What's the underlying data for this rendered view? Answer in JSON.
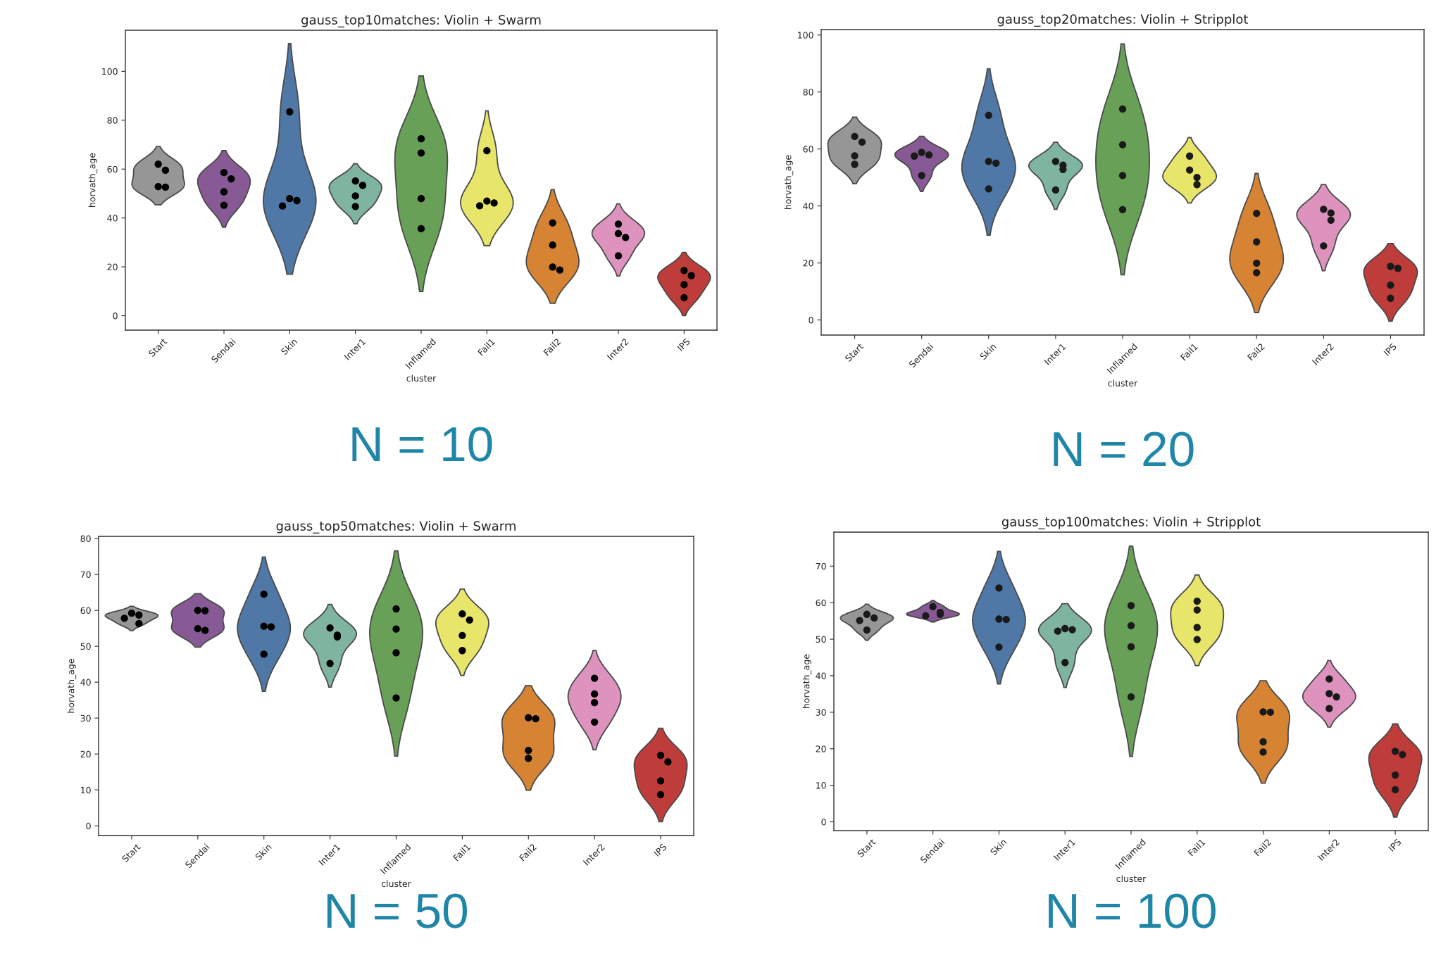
{
  "chart_data": [
    {
      "type": "scatter",
      "title": "gauss_top10matches: Violin + Swarm",
      "xlabel": "cluster",
      "ylabel": "horvath_age",
      "categories": [
        "Start",
        "Sendai",
        "Skin",
        "Inter1",
        "Inflamed",
        "Fail1",
        "Fail2",
        "Inter2",
        "IPS"
      ],
      "colors": [
        "#969696",
        "#885a95",
        "#4f78a6",
        "#7fb5a0",
        "#68a058",
        "#e8e66a",
        "#d68434",
        "#de93bf",
        "#be3d3a"
      ],
      "series": [
        {
          "color": "#000000",
          "x": [
            "Start",
            "Start",
            "Start",
            "Start"
          ],
          "values": [
            62,
            59.5,
            52.8,
            52.6
          ]
        },
        {
          "color": "#000000",
          "x": [
            "Sendai",
            "Sendai",
            "Sendai",
            "Sendai"
          ],
          "values": [
            58.6,
            56,
            50.7,
            45.2
          ]
        },
        {
          "color": "#000000",
          "x": [
            "Skin",
            "Skin",
            "Skin",
            "Skin"
          ],
          "values": [
            83.4,
            47.9,
            47.1,
            44.9
          ]
        },
        {
          "color": "#000000",
          "x": [
            "Inter1",
            "Inter1",
            "Inter1",
            "Inter1"
          ],
          "values": [
            55.1,
            53.3,
            49,
            44.7
          ]
        },
        {
          "color": "#000000",
          "x": [
            "Inflamed",
            "Inflamed",
            "Inflamed",
            "Inflamed"
          ],
          "values": [
            72.4,
            66.6,
            47.9,
            35.6
          ]
        },
        {
          "color": "#000000",
          "x": [
            "Fail1",
            "Fail1",
            "Fail1",
            "Fail1"
          ],
          "values": [
            67.5,
            46.9,
            46.1,
            45
          ]
        },
        {
          "color": "#000000",
          "x": [
            "Fail2",
            "Fail2",
            "Fail2",
            "Fail2"
          ],
          "values": [
            38,
            28.9,
            19.9,
            18.7
          ]
        },
        {
          "color": "#000000",
          "x": [
            "Inter2",
            "Inter2",
            "Inter2",
            "Inter2"
          ],
          "values": [
            37.5,
            33.6,
            32,
            24.5
          ]
        },
        {
          "color": "#000000",
          "x": [
            "IPS",
            "IPS",
            "IPS",
            "IPS"
          ],
          "values": [
            18.5,
            16.4,
            12.7,
            7.4
          ]
        }
      ],
      "ylim": [
        -5.9,
        116.8
      ],
      "yticks": [
        0,
        20,
        40,
        60,
        80,
        100
      ],
      "annotations": [
        "N = 10"
      ]
    },
    {
      "type": "scatter",
      "title": "gauss_top20matches: Violin + Stripplot",
      "xlabel": "cluster",
      "ylabel": "horvath_age",
      "categories": [
        "Start",
        "Sendai",
        "Skin",
        "Inter1",
        "Inflamed",
        "Fail1",
        "Fail2",
        "Inter2",
        "IPS"
      ],
      "colors": [
        "#969696",
        "#885a95",
        "#4f78a6",
        "#7fb5a0",
        "#68a058",
        "#e8e66a",
        "#d68434",
        "#de93bf",
        "#be3d3a"
      ],
      "series": [
        {
          "color": "#1a1a1a",
          "x": [
            "Start",
            "Start",
            "Start",
            "Start"
          ],
          "values": [
            64.4,
            62.4,
            57.6,
            54.6
          ]
        },
        {
          "color": "#1a1a1a",
          "x": [
            "Sendai",
            "Sendai",
            "Sendai",
            "Sendai"
          ],
          "values": [
            58.8,
            57.9,
            57.5,
            50.7
          ]
        },
        {
          "color": "#1a1a1a",
          "x": [
            "Skin",
            "Skin",
            "Skin",
            "Skin"
          ],
          "values": [
            71.8,
            55.6,
            55,
            46
          ]
        },
        {
          "color": "#1a1a1a",
          "x": [
            "Inter1",
            "Inter1",
            "Inter1",
            "Inter1"
          ],
          "values": [
            55.6,
            54.3,
            52.8,
            45.6
          ]
        },
        {
          "color": "#1a1a1a",
          "x": [
            "Inflamed",
            "Inflamed",
            "Inflamed",
            "Inflamed"
          ],
          "values": [
            74,
            61.5,
            50.7,
            38.7
          ]
        },
        {
          "color": "#1a1a1a",
          "x": [
            "Fail1",
            "Fail1",
            "Fail1",
            "Fail1"
          ],
          "values": [
            57.5,
            52.6,
            50,
            47.5
          ]
        },
        {
          "color": "#1a1a1a",
          "x": [
            "Fail2",
            "Fail2",
            "Fail2",
            "Fail2"
          ],
          "values": [
            37.4,
            27.4,
            19.9,
            16.6
          ]
        },
        {
          "color": "#1a1a1a",
          "x": [
            "Inter2",
            "Inter2",
            "Inter2",
            "Inter2"
          ],
          "values": [
            38.8,
            37.5,
            35,
            26
          ]
        },
        {
          "color": "#1a1a1a",
          "x": [
            "IPS",
            "IPS",
            "IPS",
            "IPS"
          ],
          "values": [
            18.8,
            18.1,
            12.2,
            7.6
          ]
        }
      ],
      "ylim": [
        -5.3,
        101.9
      ],
      "yticks": [
        0,
        20,
        40,
        60,
        80,
        100
      ],
      "annotations": [
        "N = 20"
      ]
    },
    {
      "type": "scatter",
      "title": "gauss_top50matches: Violin + Swarm",
      "xlabel": "cluster",
      "ylabel": "horvath_age",
      "categories": [
        "Start",
        "Sendai",
        "Skin",
        "Inter1",
        "Inflamed",
        "Fail1",
        "Fail2",
        "Inter2",
        "IPS"
      ],
      "colors": [
        "#969696",
        "#885a95",
        "#4f78a6",
        "#7fb5a0",
        "#68a058",
        "#e8e66a",
        "#d68434",
        "#de93bf",
        "#be3d3a"
      ],
      "series": [
        {
          "color": "#000000",
          "x": [
            "Start",
            "Start",
            "Start",
            "Start"
          ],
          "values": [
            59.2,
            58.7,
            57.8,
            56.3
          ]
        },
        {
          "color": "#000000",
          "x": [
            "Sendai",
            "Sendai",
            "Sendai",
            "Sendai"
          ],
          "values": [
            60,
            59.9,
            54.9,
            54.4
          ]
        },
        {
          "color": "#000000",
          "x": [
            "Skin",
            "Skin",
            "Skin",
            "Skin"
          ],
          "values": [
            64.5,
            55.6,
            55.4,
            47.8
          ]
        },
        {
          "color": "#000000",
          "x": [
            "Inter1",
            "Inter1",
            "Inter1",
            "Inter1"
          ],
          "values": [
            55.1,
            53.1,
            52.6,
            45.2
          ]
        },
        {
          "color": "#000000",
          "x": [
            "Inflamed",
            "Inflamed",
            "Inflamed",
            "Inflamed"
          ],
          "values": [
            60.4,
            54.8,
            48.2,
            35.6
          ]
        },
        {
          "color": "#000000",
          "x": [
            "Fail1",
            "Fail1",
            "Fail1",
            "Fail1"
          ],
          "values": [
            59,
            57.3,
            53,
            48.8
          ]
        },
        {
          "color": "#000000",
          "x": [
            "Fail2",
            "Fail2",
            "Fail2",
            "Fail2"
          ],
          "values": [
            30.1,
            29.8,
            21,
            18.8
          ]
        },
        {
          "color": "#000000",
          "x": [
            "Inter2",
            "Inter2",
            "Inter2",
            "Inter2"
          ],
          "values": [
            41.1,
            36.7,
            34.3,
            28.9
          ]
        },
        {
          "color": "#000000",
          "x": [
            "IPS",
            "IPS",
            "IPS",
            "IPS"
          ],
          "values": [
            19.6,
            17.8,
            12.5,
            8.7
          ]
        }
      ],
      "ylim": [
        -2.7,
        80.6
      ],
      "yticks": [
        0,
        10,
        20,
        30,
        40,
        50,
        60,
        70,
        80
      ],
      "annotations": [
        "N = 50"
      ]
    },
    {
      "type": "scatter",
      "title": "gauss_top100matches: Violin + Stripplot",
      "xlabel": "cluster",
      "ylabel": "horvath_age",
      "categories": [
        "Start",
        "Sendai",
        "Skin",
        "Inter1",
        "Inflamed",
        "Fail1",
        "Fail2",
        "Inter2",
        "IPS"
      ],
      "colors": [
        "#969696",
        "#885a95",
        "#4f78a6",
        "#7fb5a0",
        "#68a058",
        "#e8e66a",
        "#d68434",
        "#de93bf",
        "#be3d3a"
      ],
      "series": [
        {
          "color": "#1a1a1a",
          "x": [
            "Start",
            "Start",
            "Start",
            "Start"
          ],
          "values": [
            56.8,
            55.8,
            55.1,
            52.5
          ]
        },
        {
          "color": "#1a1a1a",
          "x": [
            "Sendai",
            "Sendai",
            "Sendai",
            "Sendai"
          ],
          "values": [
            58.9,
            57.3,
            56.8,
            56.4
          ]
        },
        {
          "color": "#1a1a1a",
          "x": [
            "Skin",
            "Skin",
            "Skin",
            "Skin"
          ],
          "values": [
            64,
            55.5,
            55.4,
            47.8
          ]
        },
        {
          "color": "#1a1a1a",
          "x": [
            "Inter1",
            "Inter1",
            "Inter1",
            "Inter1"
          ],
          "values": [
            52.9,
            52.6,
            52.2,
            43.6
          ]
        },
        {
          "color": "#1a1a1a",
          "x": [
            "Inflamed",
            "Inflamed",
            "Inflamed",
            "Inflamed"
          ],
          "values": [
            59.2,
            53.7,
            47.9,
            34.2
          ]
        },
        {
          "color": "#1a1a1a",
          "x": [
            "Fail1",
            "Fail1",
            "Fail1",
            "Fail1"
          ],
          "values": [
            60.4,
            58,
            53.2,
            49.9
          ]
        },
        {
          "color": "#1a1a1a",
          "x": [
            "Fail2",
            "Fail2",
            "Fail2",
            "Fail2"
          ],
          "values": [
            30.1,
            30,
            21.9,
            19.1
          ]
        },
        {
          "color": "#1a1a1a",
          "x": [
            "Inter2",
            "Inter2",
            "Inter2",
            "Inter2"
          ],
          "values": [
            39.1,
            35.1,
            34.2,
            31
          ]
        },
        {
          "color": "#1a1a1a",
          "x": [
            "IPS",
            "IPS",
            "IPS",
            "IPS"
          ],
          "values": [
            19.3,
            18.4,
            12.8,
            8.8
          ]
        }
      ],
      "ylim": [
        -2.4,
        79.3
      ],
      "yticks": [
        0,
        10,
        20,
        30,
        40,
        50,
        60,
        70
      ],
      "annotations": [
        "N = 100"
      ]
    }
  ]
}
